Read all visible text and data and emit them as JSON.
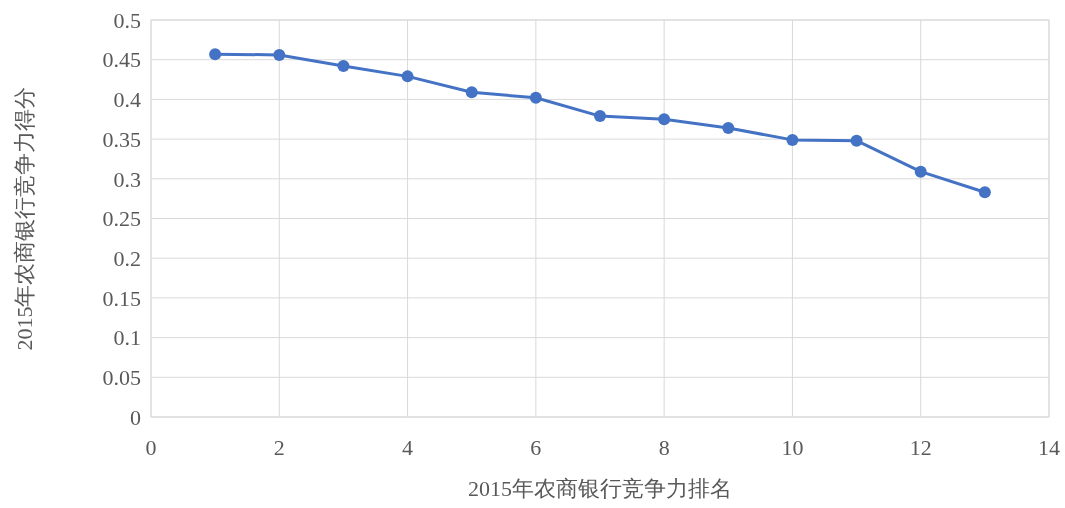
{
  "chart_data": {
    "type": "line",
    "xlabel": "2015年农商银行竞争力排名",
    "ylabel": "2015年农商银行竞争力得分",
    "x": [
      1,
      2,
      3,
      4,
      5,
      6,
      7,
      8,
      9,
      10,
      11,
      12,
      13
    ],
    "series": [
      {
        "color": "#4472c4",
        "values": [
          0.457,
          0.456,
          0.442,
          0.429,
          0.409,
          0.402,
          0.379,
          0.375,
          0.364,
          0.349,
          0.348,
          0.309,
          0.283
        ]
      }
    ],
    "xlim": [
      0,
      14
    ],
    "xticks": [
      0,
      2,
      4,
      6,
      8,
      10,
      12,
      14
    ],
    "ylim": [
      0,
      0.5
    ],
    "yticks": [
      0,
      0.05,
      0.1,
      0.15,
      0.2,
      0.25,
      0.3,
      0.35,
      0.4,
      0.45,
      0.5
    ],
    "grid": true,
    "marker": "circle",
    "line_style": "solid"
  }
}
